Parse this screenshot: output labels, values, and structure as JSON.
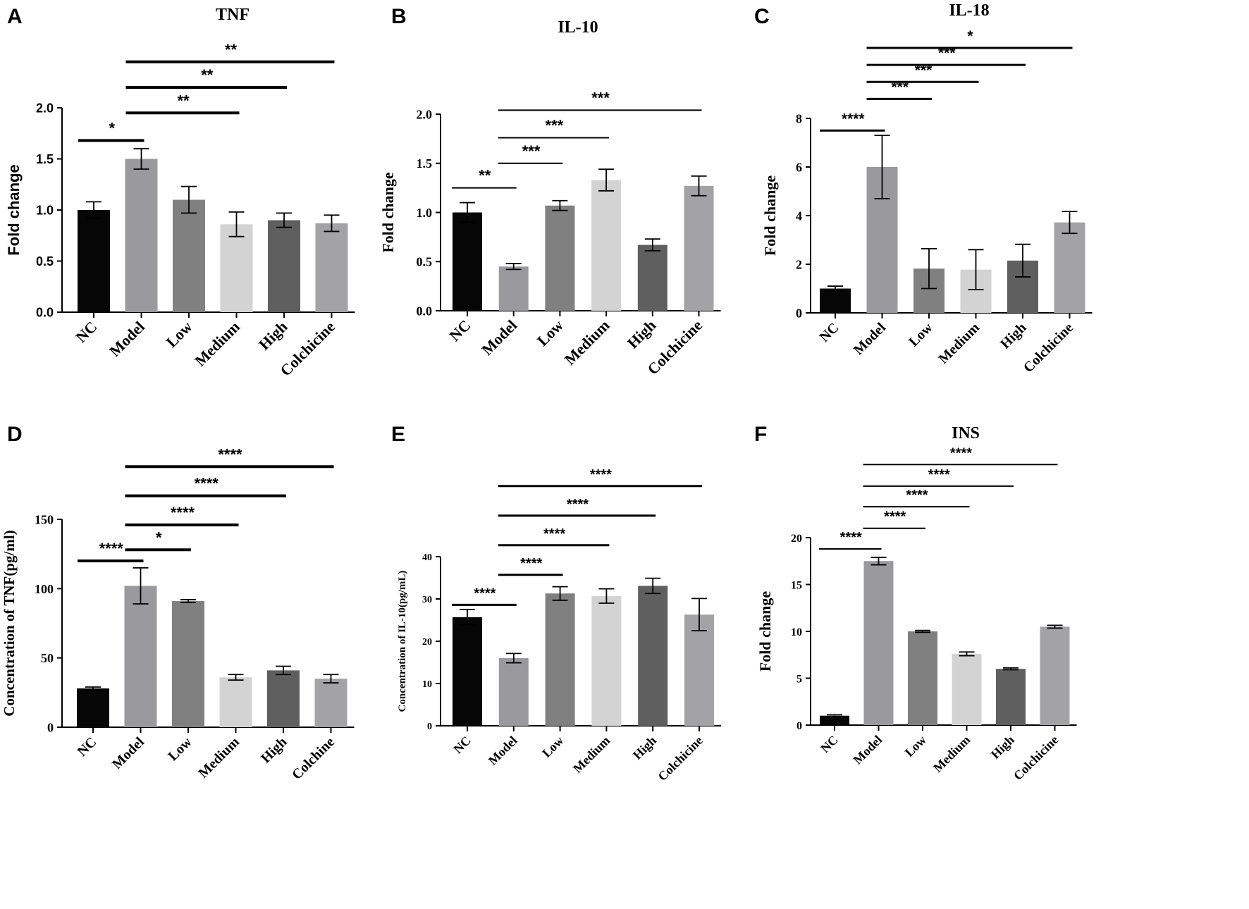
{
  "chart_data": [
    {
      "type": "bar",
      "panel_label": "A",
      "title": "TNF",
      "ylabel": "Fold change",
      "ylim": [
        0,
        2.0
      ],
      "yticks": [
        "0.0",
        "0.5",
        "1.0",
        "1.5",
        "2.0"
      ],
      "categories": [
        "NC",
        "Model",
        "Low",
        "Medium",
        "High",
        "Colchicine"
      ],
      "values": [
        1.0,
        1.5,
        1.1,
        0.86,
        0.9,
        0.87
      ],
      "errors": [
        0.08,
        0.1,
        0.13,
        0.12,
        0.07,
        0.08
      ],
      "colors": [
        "#060606",
        "#9a999e",
        "#808080",
        "#d3d3d3",
        "#5f5f5f",
        "#a3a3a6"
      ],
      "significance": [
        {
          "from": 0,
          "to": 1,
          "label": "*",
          "y": 1.68
        },
        {
          "from": 1,
          "to": 3,
          "label": "**",
          "y": 1.95
        },
        {
          "from": 1,
          "to": 4,
          "label": "**",
          "y": 2.2
        },
        {
          "from": 1,
          "to": 5,
          "label": "**",
          "y": 2.45
        }
      ]
    },
    {
      "type": "bar",
      "panel_label": "B",
      "title": "IL-10",
      "ylabel": "Fold change",
      "ylim": [
        0,
        2.0
      ],
      "yticks": [
        "0.0",
        "0.5",
        "1.0",
        "1.5",
        "2.0"
      ],
      "categories": [
        "NC",
        "Model",
        "Low",
        "Medium",
        "High",
        "Colchicine"
      ],
      "values": [
        1.0,
        0.45,
        1.07,
        1.33,
        0.67,
        1.27
      ],
      "errors": [
        0.1,
        0.03,
        0.05,
        0.11,
        0.06,
        0.1
      ],
      "colors": [
        "#060606",
        "#9a999e",
        "#808080",
        "#d3d3d3",
        "#5f5f5f",
        "#a3a3a6"
      ],
      "significance": [
        {
          "from": 0,
          "to": 1,
          "label": "**",
          "y": 1.25
        },
        {
          "from": 1,
          "to": 2,
          "label": "***",
          "y": 1.5
        },
        {
          "from": 1,
          "to": 3,
          "label": "***",
          "y": 1.76
        },
        {
          "from": 1,
          "to": 5,
          "label": "***",
          "y": 2.04
        }
      ]
    },
    {
      "type": "bar",
      "panel_label": "C",
      "title": "IL-18",
      "ylabel": "Fold change",
      "ylim": [
        0,
        8
      ],
      "yticks": [
        "0",
        "2",
        "4",
        "6",
        "8"
      ],
      "categories": [
        "NC",
        "Model",
        "Low",
        "Medium",
        "High",
        "Colchicine"
      ],
      "values": [
        1.0,
        6.0,
        1.82,
        1.78,
        2.15,
        3.72
      ],
      "errors": [
        0.1,
        1.3,
        0.82,
        0.82,
        0.67,
        0.45
      ],
      "colors": [
        "#060606",
        "#9a999e",
        "#808080",
        "#d3d3d3",
        "#5f5f5f",
        "#a3a3a6"
      ],
      "significance": [
        {
          "from": 0,
          "to": 1,
          "label": "****",
          "y": 7.5
        },
        {
          "from": 1,
          "to": 2,
          "label": "***",
          "y": 8.8
        },
        {
          "from": 1,
          "to": 3,
          "label": "***",
          "y": 9.5
        },
        {
          "from": 1,
          "to": 4,
          "label": "***",
          "y": 10.2
        },
        {
          "from": 1,
          "to": 5,
          "label": "*",
          "y": 10.9
        }
      ]
    },
    {
      "type": "bar",
      "panel_label": "D",
      "title": "",
      "ylabel": "Concentration of TNF(pg/ml)",
      "ylim": [
        0,
        150
      ],
      "yticks": [
        "0",
        "50",
        "100",
        "150"
      ],
      "categories": [
        "NC",
        "Model",
        "Low",
        "Medium",
        "High",
        "Colchine"
      ],
      "values": [
        28,
        102,
        91,
        36,
        41,
        35
      ],
      "errors": [
        1,
        13,
        1,
        2,
        3,
        3
      ],
      "colors": [
        "#060606",
        "#9a999e",
        "#808080",
        "#d3d3d3",
        "#5f5f5f",
        "#a3a3a6"
      ],
      "significance": [
        {
          "from": 0,
          "to": 1,
          "label": "****",
          "y": 120
        },
        {
          "from": 1,
          "to": 2,
          "label": "*",
          "y": 128
        },
        {
          "from": 1,
          "to": 3,
          "label": "****",
          "y": 146
        },
        {
          "from": 1,
          "to": 4,
          "label": "****",
          "y": 167
        },
        {
          "from": 1,
          "to": 5,
          "label": "****",
          "y": 188
        }
      ]
    },
    {
      "type": "bar",
      "panel_label": "E",
      "title": "",
      "ylabel": "Concentration of IL-10(pg/mL)",
      "ylim": [
        0,
        40
      ],
      "yticks": [
        "0",
        "10",
        "20",
        "30",
        "40"
      ],
      "categories": [
        "NC",
        "Model",
        "Low",
        "Medium",
        "High",
        "Colchicine"
      ],
      "values": [
        25.7,
        16.0,
        31.3,
        30.7,
        33.1,
        26.3
      ],
      "errors": [
        1.8,
        1.1,
        1.6,
        1.7,
        1.8,
        3.8
      ],
      "colors": [
        "#060606",
        "#9a999e",
        "#808080",
        "#d3d3d3",
        "#5f5f5f",
        "#a3a3a6"
      ],
      "significance": [
        {
          "from": 0,
          "to": 1,
          "label": "****",
          "y": 28.6
        },
        {
          "from": 1,
          "to": 2,
          "label": "****",
          "y": 35.7
        },
        {
          "from": 1,
          "to": 3,
          "label": "****",
          "y": 42.7
        },
        {
          "from": 1,
          "to": 4,
          "label": "****",
          "y": 49.7
        },
        {
          "from": 1,
          "to": 5,
          "label": "****",
          "y": 56.7
        }
      ]
    },
    {
      "type": "bar",
      "panel_label": "F",
      "title": "INS",
      "ylabel": "Fold change",
      "ylim": [
        0,
        20
      ],
      "yticks": [
        "0",
        "5",
        "10",
        "15",
        "20"
      ],
      "categories": [
        "NC",
        "Model",
        "Low",
        "Medium",
        "High",
        "Colchicine"
      ],
      "values": [
        1.0,
        17.5,
        10.0,
        7.6,
        6.0,
        10.5
      ],
      "errors": [
        0.1,
        0.4,
        0.1,
        0.2,
        0.1,
        0.15
      ],
      "colors": [
        "#060606",
        "#9a999e",
        "#808080",
        "#d3d3d3",
        "#5f5f5f",
        "#a3a3a6"
      ],
      "significance": [
        {
          "from": 0,
          "to": 1,
          "label": "****",
          "y": 18.8
        },
        {
          "from": 1,
          "to": 2,
          "label": "****",
          "y": 21.0
        },
        {
          "from": 1,
          "to": 3,
          "label": "****",
          "y": 23.3
        },
        {
          "from": 1,
          "to": 4,
          "label": "****",
          "y": 25.5
        },
        {
          "from": 1,
          "to": 5,
          "label": "****",
          "y": 27.8
        }
      ]
    }
  ]
}
